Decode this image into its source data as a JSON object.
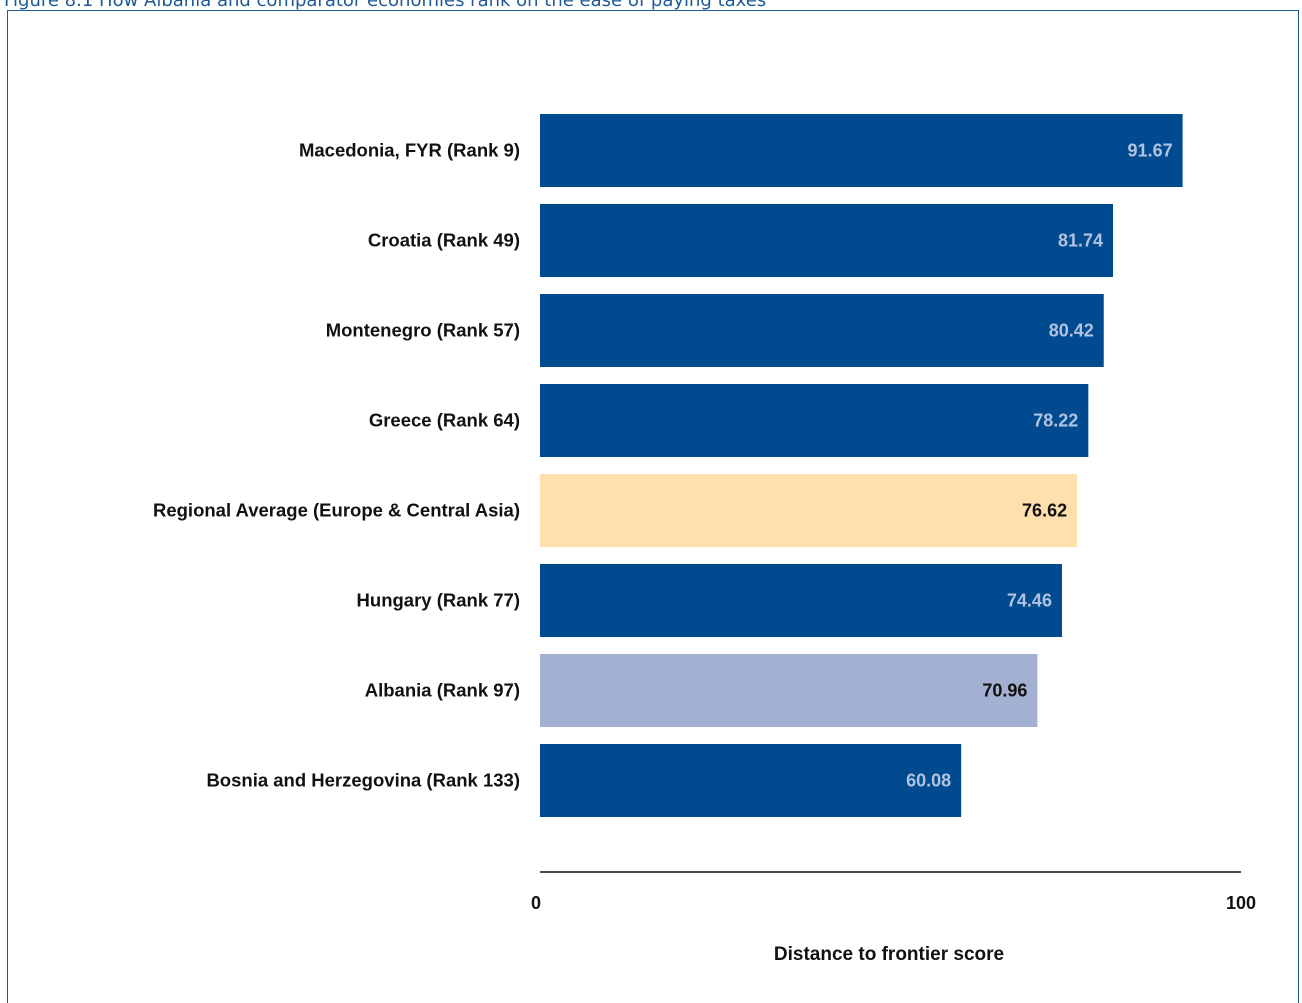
{
  "caption": "Figure 8.1 How Albania and comparator economies rank on the ease of paying taxes",
  "chart_data": {
    "type": "bar",
    "orientation": "horizontal",
    "categories": [
      "Macedonia, FYR (Rank 9)",
      "Croatia (Rank 49)",
      "Montenegro (Rank 57)",
      "Greece (Rank 64)",
      "Regional Average (Europe & Central Asia)",
      "Hungary (Rank 77)",
      "Albania (Rank 97)",
      "Bosnia and Herzegovina (Rank 133)"
    ],
    "values": [
      91.67,
      81.74,
      80.42,
      78.22,
      76.62,
      74.46,
      70.96,
      60.08
    ],
    "value_labels": [
      "91.67",
      "81.74",
      "80.42",
      "78.22",
      "76.62",
      "74.46",
      "70.96",
      "60.08"
    ],
    "bar_colors": [
      "#004a8f",
      "#004a8f",
      "#004a8f",
      "#004a8f",
      "#ffe0ac",
      "#004a8f",
      "#a4b0d2",
      "#004a8f"
    ],
    "label_colors": [
      "#b2c2e0",
      "#b2c2e0",
      "#b2c2e0",
      "#b2c2e0",
      "#111111",
      "#b2c2e0",
      "#111111",
      "#b2c2e0"
    ],
    "xlabel": "Distance to frontier score",
    "xlim": [
      0,
      100
    ],
    "xticks": [
      "0",
      "100"
    ],
    "grid": false,
    "legend": "none"
  }
}
